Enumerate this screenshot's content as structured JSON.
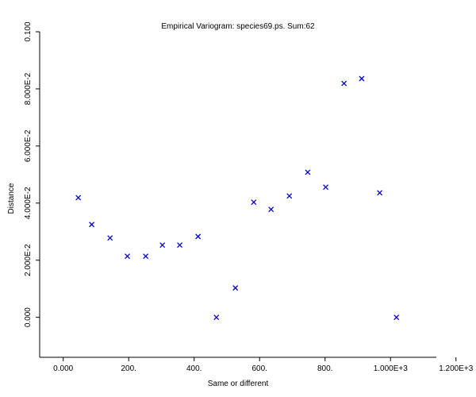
{
  "chart_data": {
    "type": "scatter",
    "title": "Empirical Variogram: species69.ps. Sum:62",
    "x_label": "Same or different",
    "y_label": "Distance",
    "color": "#0000cc",
    "x": [
      46,
      87,
      143,
      196,
      252,
      303,
      356,
      412,
      468,
      526,
      582,
      635,
      691,
      747,
      802,
      858,
      912,
      967,
      1018
    ],
    "values": [
      0.0419,
      0.0325,
      0.0278,
      0.0214,
      0.0214,
      0.0253,
      0.0253,
      0.0283,
      0,
      0.0103,
      0.0403,
      0.0378,
      0.0425,
      0.0508,
      0.0456,
      0.0819,
      0.0836,
      0.0436,
      0
    ],
    "xlim": [
      -72,
      1140
    ],
    "ylim": [
      -0.014,
      0.1
    ],
    "xticks": [
      {
        "value": 0,
        "label": "0.000"
      },
      {
        "value": 200,
        "label": "200."
      },
      {
        "value": 400,
        "label": "400."
      },
      {
        "value": 600,
        "label": "600."
      },
      {
        "value": 800,
        "label": "800."
      },
      {
        "value": 1000,
        "label": "1.000E+3"
      },
      {
        "value": 1200,
        "label": "1.200E+3"
      }
    ],
    "yticks": [
      {
        "value": 0,
        "label": "0.000"
      },
      {
        "value": 0.02,
        "label": "2.000E-2"
      },
      {
        "value": 0.04,
        "label": "4.000E-2"
      },
      {
        "value": 0.06,
        "label": "6.000E-2"
      },
      {
        "value": 0.08,
        "label": "8.000E-2"
      },
      {
        "value": 0.1,
        "label": "0.100"
      }
    ]
  }
}
